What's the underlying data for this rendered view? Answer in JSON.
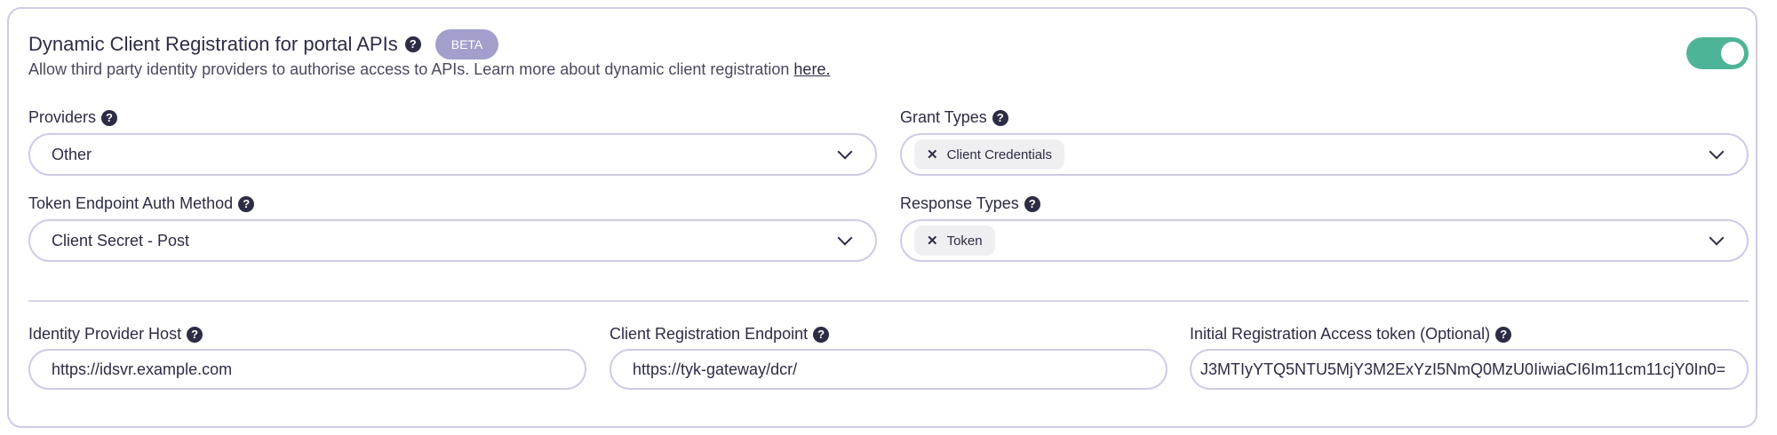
{
  "section": {
    "title": "Dynamic Client Registration for portal APIs",
    "badge": "BETA",
    "description": "Allow third party identity providers to authorise access to APIs. Learn more about dynamic client registration ",
    "link": "here.",
    "enabled": true,
    "toggle_color": "#4eb497"
  },
  "providers": {
    "label": "Providers",
    "value": "Other"
  },
  "grant_types": {
    "label": "Grant Types",
    "chips": [
      "Client Credentials"
    ]
  },
  "token_auth": {
    "label": "Token Endpoint Auth Method",
    "value": "Client Secret - Post"
  },
  "response_types": {
    "label": "Response Types",
    "chips": [
      "Token"
    ]
  },
  "idp_host": {
    "label": "Identity Provider Host",
    "value": "https://idsvr.example.com"
  },
  "reg_endpoint": {
    "label": "Client Registration Endpoint",
    "value": "https://tyk-gateway/dcr/"
  },
  "access_token": {
    "label": "Initial Registration Access token (Optional)",
    "value": "J3MTIyYTQ5NTU5MjY3M2ExYzI5NmQ0MzU0IiwiaCI6Im11cm11cjY0In0="
  },
  "icons": {
    "help": "?",
    "remove": "✕"
  }
}
